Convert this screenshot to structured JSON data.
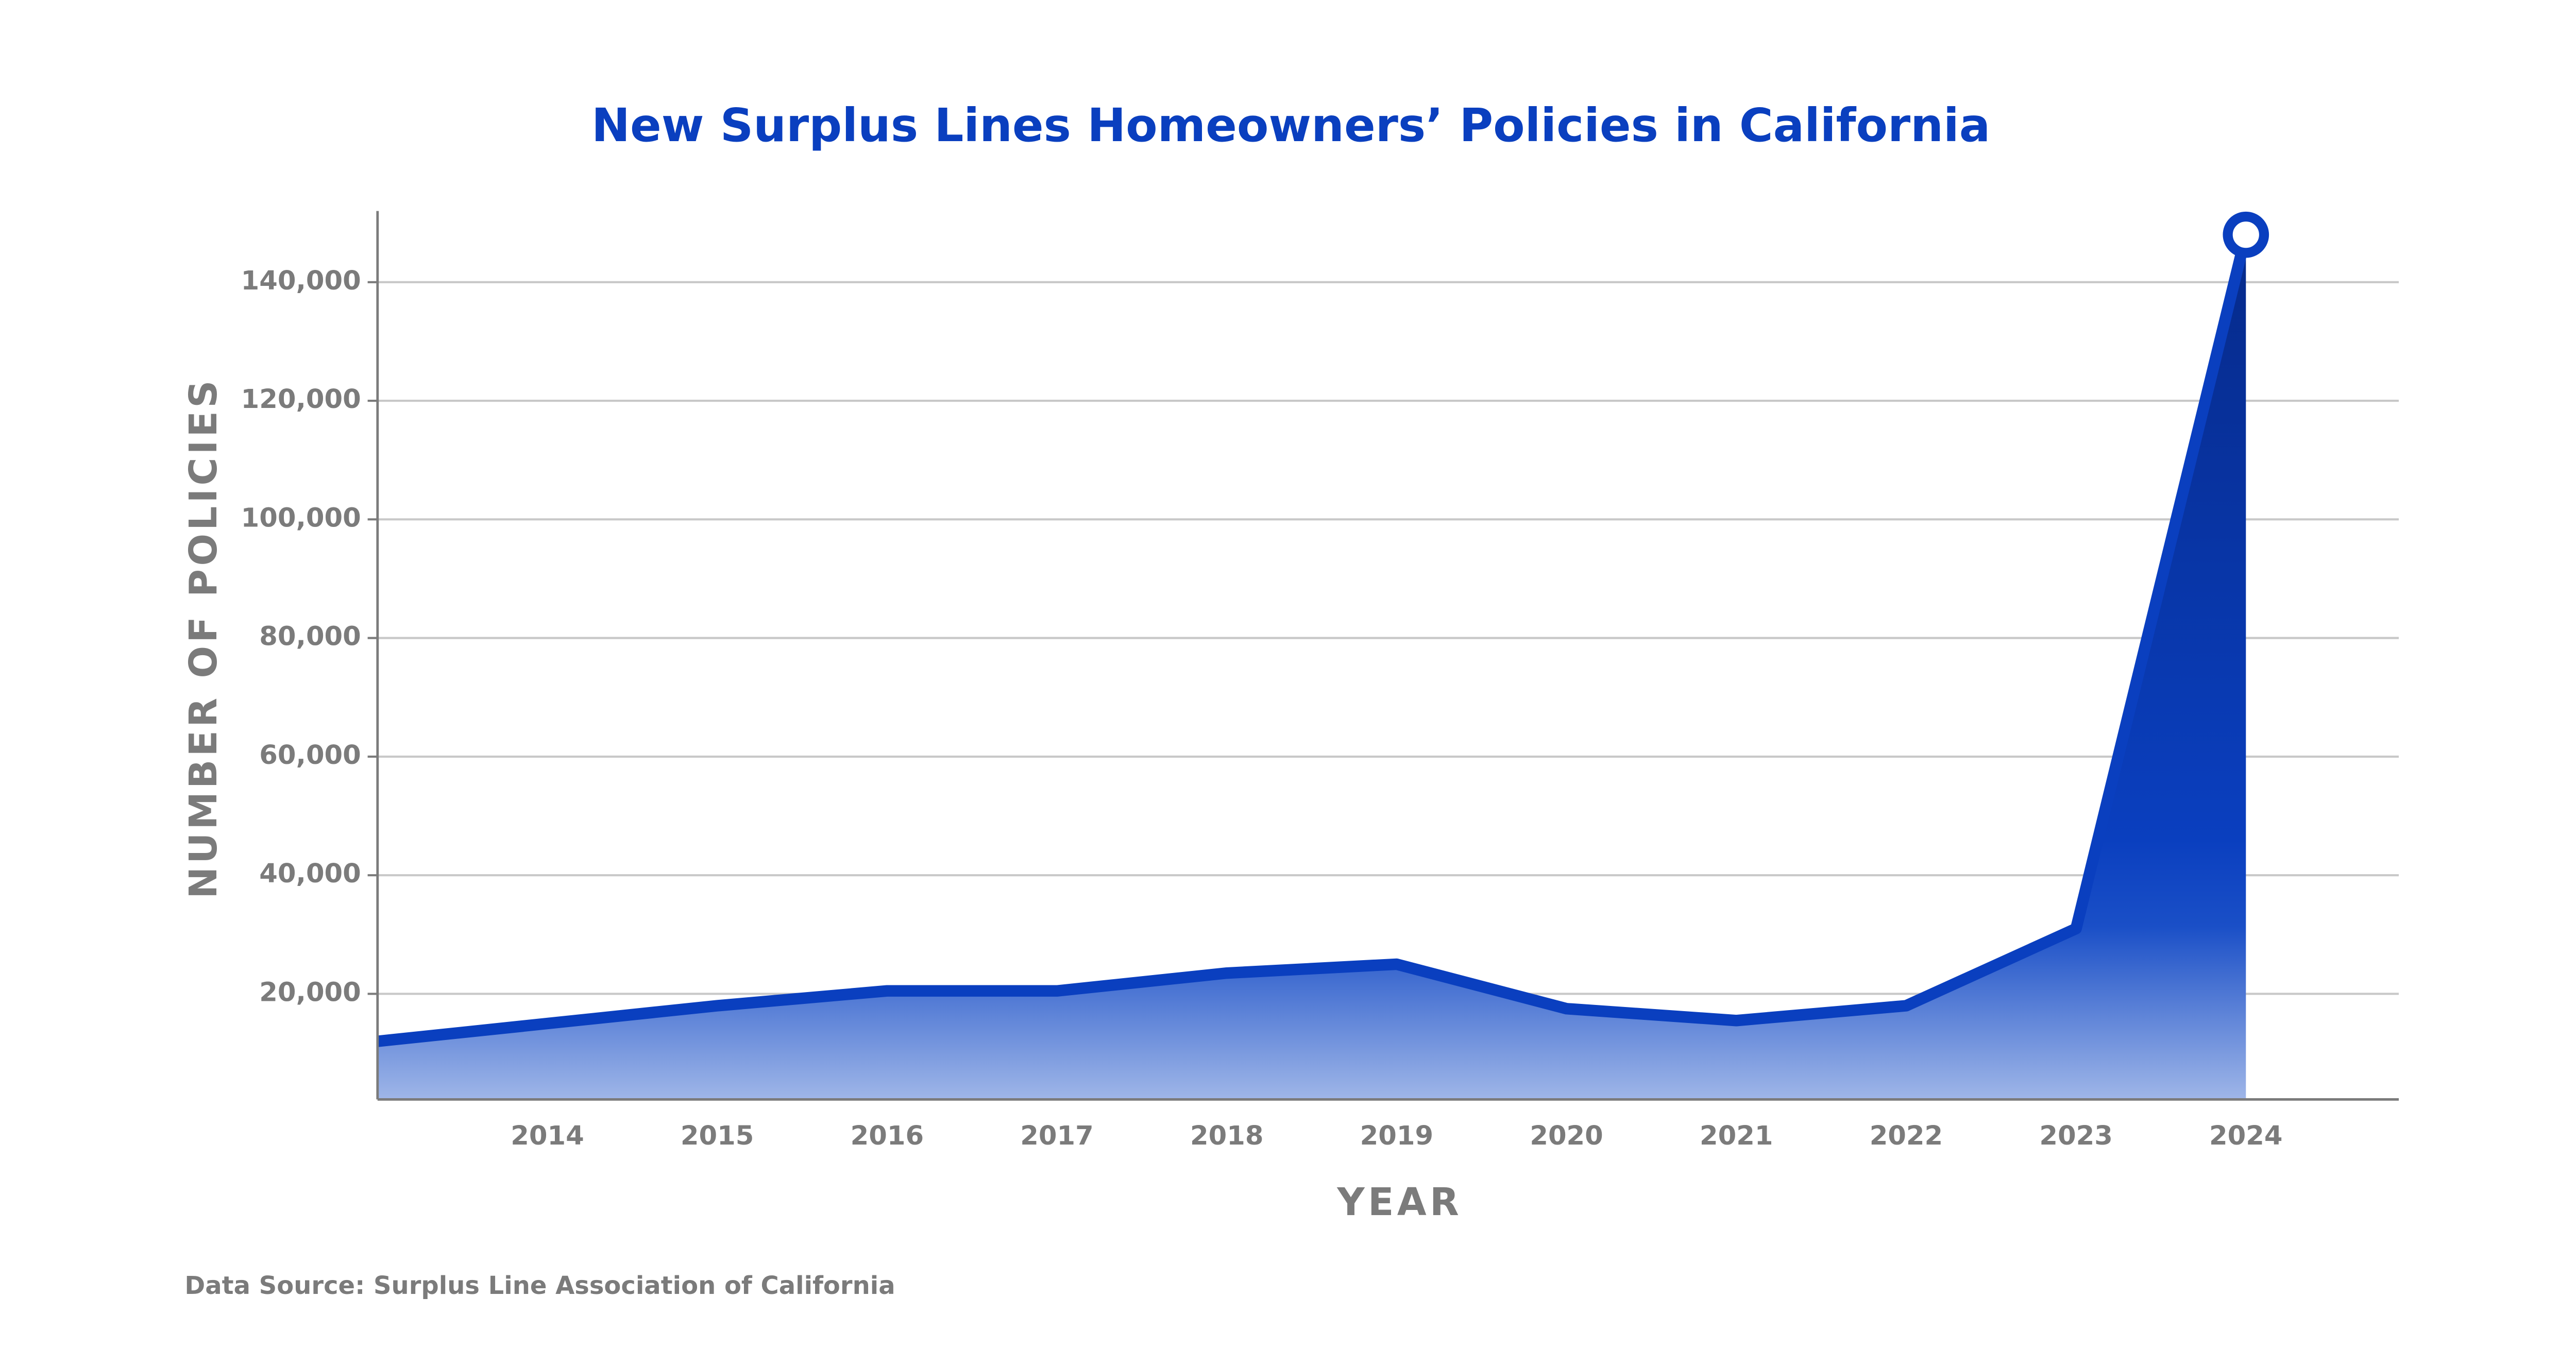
{
  "chart_data": {
    "type": "area",
    "title": "New Surplus Lines Homeowners’ Policies in California",
    "x": [
      2013,
      2014,
      2015,
      2016,
      2017,
      2018,
      2019,
      2020,
      2021,
      2022,
      2023,
      2024
    ],
    "values": [
      12000,
      15000,
      18000,
      20500,
      20500,
      23500,
      25000,
      17500,
      15500,
      18000,
      31000,
      148000
    ],
    "color": "#0a3fbf",
    "xlim": [
      2013,
      2024.9
    ],
    "xticks": [
      2014,
      2015,
      2016,
      2017,
      2018,
      2019,
      2020,
      2021,
      2022,
      2023,
      2024
    ],
    "ylim": [
      2200,
      152000
    ],
    "yticks": [
      {
        "value": 20000,
        "label": "20,000"
      },
      {
        "value": 40000,
        "label": "40,000"
      },
      {
        "value": 60000,
        "label": "60,000"
      },
      {
        "value": 80000,
        "label": "80,000"
      },
      {
        "value": 100000,
        "label": "100,000"
      },
      {
        "value": 120000,
        "label": "120,000"
      },
      {
        "value": 140000,
        "label": "140,000"
      }
    ],
    "grid": true,
    "x_label": "YEAR",
    "y_label": "NUMBER OF POLICIES",
    "source": "Data Source: Surplus Line Association of California"
  }
}
